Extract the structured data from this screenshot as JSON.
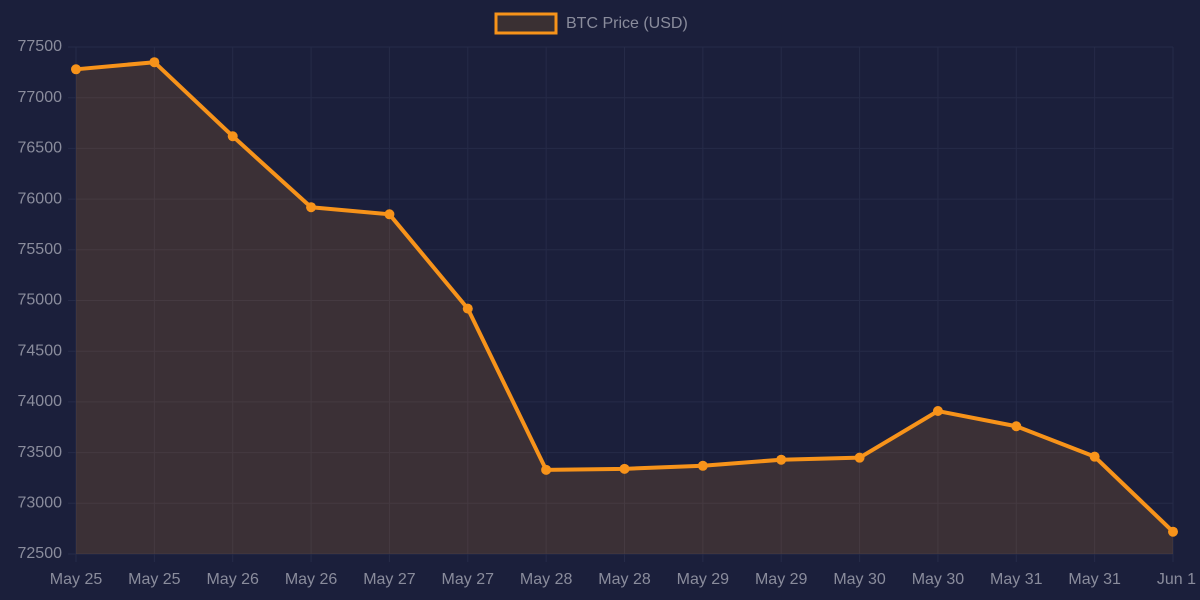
{
  "chart_data": {
    "type": "line",
    "categories": [
      "May 25",
      "May 25",
      "May 26",
      "May 26",
      "May 27",
      "May 27",
      "May 28",
      "May 28",
      "May 29",
      "May 29",
      "May 30",
      "May 30",
      "May 31",
      "May 31",
      "Jun 1"
    ],
    "series": [
      {
        "name": "BTC Price (USD)",
        "color": "#f7931a",
        "values": [
          77280,
          77350,
          76620,
          75920,
          75850,
          74920,
          73330,
          73340,
          73370,
          73430,
          73450,
          73910,
          73760,
          73460,
          72720
        ]
      }
    ],
    "ylim": [
      72500,
      77500
    ],
    "yticks": [
      72500,
      73000,
      73500,
      74000,
      74500,
      75000,
      75500,
      76000,
      76500,
      77000,
      77500
    ],
    "grid": true,
    "fill": true,
    "legend": "top"
  }
}
